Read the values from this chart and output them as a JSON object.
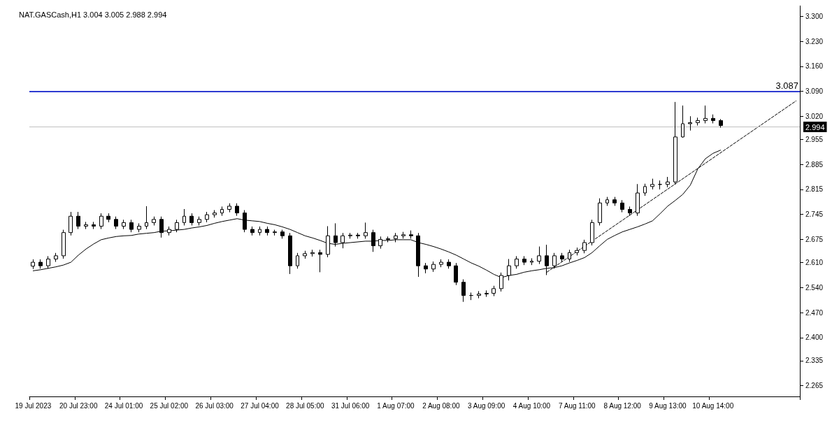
{
  "chart_data": {
    "type": "candlestick",
    "title": "NAT.GASCash,H1 3.004 3.005 2.988 2.994",
    "categories": [
      "19 Jul 2023",
      null,
      null,
      null,
      null,
      null,
      "20 Jul 23:00",
      null,
      null,
      null,
      null,
      null,
      "24 Jul 01:00",
      null,
      null,
      null,
      null,
      null,
      "25 Jul 02:00",
      null,
      null,
      null,
      null,
      null,
      "26 Jul 03:00",
      null,
      null,
      null,
      null,
      null,
      "27 Jul 04:00",
      null,
      null,
      null,
      null,
      null,
      "28 Jul 05:00",
      null,
      null,
      null,
      null,
      null,
      "31 Jul 06:00",
      null,
      null,
      null,
      null,
      null,
      "1 Aug 07:00",
      null,
      null,
      null,
      null,
      null,
      "2 Aug 08:00",
      null,
      null,
      null,
      null,
      null,
      "3 Aug 09:00",
      null,
      null,
      null,
      null,
      null,
      "4 Aug 10:00",
      null,
      null,
      null,
      null,
      null,
      "7 Aug 11:00",
      null,
      null,
      null,
      null,
      null,
      "8 Aug 12:00",
      null,
      null,
      null,
      null,
      null,
      "9 Aug 13:00",
      null,
      null,
      null,
      null,
      null,
      "10 Aug 14:00",
      null,
      null,
      null,
      null,
      null,
      null,
      null,
      null,
      null,
      null,
      null
    ],
    "ohlc": [
      [
        2.6,
        2.619,
        2.592,
        2.611
      ],
      [
        2.611,
        2.619,
        2.593,
        2.601
      ],
      [
        2.601,
        2.628,
        2.593,
        2.62
      ],
      [
        2.62,
        2.637,
        2.612,
        2.629
      ],
      [
        2.629,
        2.702,
        2.621,
        2.694
      ],
      [
        2.694,
        2.752,
        2.686,
        2.74
      ],
      [
        2.74,
        2.752,
        2.704,
        2.712
      ],
      [
        2.712,
        2.724,
        2.704,
        2.716
      ],
      [
        2.716,
        2.724,
        2.704,
        2.712
      ],
      [
        2.712,
        2.748,
        2.704,
        2.74
      ],
      [
        2.74,
        2.748,
        2.723,
        2.731
      ],
      [
        2.731,
        2.739,
        2.704,
        2.712
      ],
      [
        2.712,
        2.73,
        2.704,
        2.722
      ],
      [
        2.722,
        2.73,
        2.695,
        2.703
      ],
      [
        2.703,
        2.72,
        2.695,
        2.712
      ],
      [
        2.712,
        2.768,
        2.704,
        2.722
      ],
      [
        2.722,
        2.739,
        2.714,
        2.731
      ],
      [
        2.731,
        2.739,
        2.68,
        2.694
      ],
      [
        2.694,
        2.711,
        2.686,
        2.703
      ],
      [
        2.703,
        2.73,
        2.695,
        2.722
      ],
      [
        2.722,
        2.76,
        2.714,
        2.74
      ],
      [
        2.74,
        2.748,
        2.714,
        2.722
      ],
      [
        2.722,
        2.739,
        2.714,
        2.731
      ],
      [
        2.731,
        2.752,
        2.723,
        2.744
      ],
      [
        2.744,
        2.757,
        2.736,
        2.749
      ],
      [
        2.749,
        2.767,
        2.741,
        2.759
      ],
      [
        2.759,
        2.776,
        2.751,
        2.768
      ],
      [
        2.768,
        2.776,
        2.741,
        2.749
      ],
      [
        2.749,
        2.757,
        2.695,
        2.703
      ],
      [
        2.703,
        2.711,
        2.686,
        2.694
      ],
      [
        2.694,
        2.711,
        2.686,
        2.703
      ],
      [
        2.703,
        2.711,
        2.686,
        2.694
      ],
      [
        2.694,
        2.702,
        2.686,
        2.696
      ],
      [
        2.696,
        2.702,
        2.677,
        2.685
      ],
      [
        2.685,
        2.693,
        2.578,
        2.601
      ],
      [
        2.601,
        2.637,
        2.593,
        2.629
      ],
      [
        2.629,
        2.643,
        2.621,
        2.635
      ],
      [
        2.635,
        2.646,
        2.627,
        2.638
      ],
      [
        2.638,
        2.646,
        2.583,
        2.633
      ],
      [
        2.633,
        2.712,
        2.625,
        2.685
      ],
      [
        2.685,
        2.72,
        2.655,
        2.666
      ],
      [
        2.666,
        2.693,
        2.65,
        2.685
      ],
      [
        2.685,
        2.693,
        2.677,
        2.687
      ],
      [
        2.687,
        2.693,
        2.677,
        2.685
      ],
      [
        2.685,
        2.722,
        2.677,
        2.694
      ],
      [
        2.694,
        2.702,
        2.64,
        2.657
      ],
      [
        2.657,
        2.683,
        2.649,
        2.675
      ],
      [
        2.675,
        2.683,
        2.667,
        2.677
      ],
      [
        2.677,
        2.693,
        2.667,
        2.685
      ],
      [
        2.685,
        2.696,
        2.677,
        2.688
      ],
      [
        2.688,
        2.7,
        2.677,
        2.685
      ],
      [
        2.685,
        2.693,
        2.57,
        2.601
      ],
      [
        2.601,
        2.609,
        2.58,
        2.592
      ],
      [
        2.592,
        2.613,
        2.584,
        2.605
      ],
      [
        2.605,
        2.619,
        2.597,
        2.611
      ],
      [
        2.611,
        2.619,
        2.593,
        2.601
      ],
      [
        2.601,
        2.609,
        2.547,
        2.555
      ],
      [
        2.555,
        2.563,
        2.5,
        2.518
      ],
      [
        2.518,
        2.526,
        2.505,
        2.518
      ],
      [
        2.518,
        2.53,
        2.51,
        2.522
      ],
      [
        2.522,
        2.532,
        2.514,
        2.524
      ],
      [
        2.524,
        2.545,
        2.516,
        2.537
      ],
      [
        2.537,
        2.582,
        2.529,
        2.574
      ],
      [
        2.574,
        2.62,
        2.56,
        2.601
      ],
      [
        2.601,
        2.628,
        2.593,
        2.62
      ],
      [
        2.62,
        2.628,
        2.603,
        2.611
      ],
      [
        2.611,
        2.622,
        2.603,
        2.614
      ],
      [
        2.614,
        2.655,
        2.606,
        2.629
      ],
      [
        2.629,
        2.66,
        2.575,
        2.601
      ],
      [
        2.601,
        2.637,
        2.593,
        2.629
      ],
      [
        2.629,
        2.637,
        2.612,
        2.62
      ],
      [
        2.62,
        2.646,
        2.612,
        2.638
      ],
      [
        2.638,
        2.652,
        2.63,
        2.644
      ],
      [
        2.644,
        2.674,
        2.636,
        2.666
      ],
      [
        2.666,
        2.73,
        2.658,
        2.722
      ],
      [
        2.722,
        2.79,
        2.714,
        2.777
      ],
      [
        2.777,
        2.794,
        2.769,
        2.786
      ],
      [
        2.786,
        2.794,
        2.769,
        2.777
      ],
      [
        2.777,
        2.785,
        2.751,
        2.759
      ],
      [
        2.759,
        2.767,
        2.741,
        2.749
      ],
      [
        2.749,
        2.83,
        2.741,
        2.805
      ],
      [
        2.805,
        2.831,
        2.797,
        2.823
      ],
      [
        2.823,
        2.845,
        2.815,
        2.829
      ],
      [
        2.829,
        2.84,
        2.815,
        2.829
      ],
      [
        2.829,
        2.85,
        2.821,
        2.836
      ],
      [
        2.836,
        3.06,
        2.828,
        2.962
      ],
      [
        2.962,
        3.05,
        2.96,
        2.999
      ],
      [
        2.999,
        3.02,
        2.98,
        3.002
      ],
      [
        3.002,
        3.016,
        2.994,
        3.008
      ],
      [
        3.008,
        3.05,
        3.0,
        3.014
      ],
      [
        3.014,
        3.025,
        3.0,
        3.008
      ],
      [
        3.008,
        3.012,
        2.988,
        2.994
      ],
      null,
      null,
      null,
      null,
      null,
      null,
      null,
      null,
      null,
      null
    ],
    "color": "#000000",
    "series": [
      {
        "type": "line",
        "color": "#000000",
        "values": [
          2.587,
          2.59,
          2.594,
          2.598,
          2.603,
          2.611,
          2.631,
          2.648,
          2.662,
          2.674,
          2.679,
          2.683,
          2.685,
          2.686,
          2.69,
          2.692,
          2.694,
          2.698,
          2.699,
          2.701,
          2.703,
          2.707,
          2.71,
          2.714,
          2.72,
          2.725,
          2.729,
          2.733,
          2.729,
          2.727,
          2.725,
          2.72,
          2.716,
          2.71,
          2.703,
          2.694,
          2.685,
          2.679,
          2.672,
          2.664,
          2.661,
          2.664,
          2.666,
          2.668,
          2.67,
          2.67,
          2.672,
          2.672,
          2.674,
          2.674,
          2.674,
          2.666,
          2.661,
          2.655,
          2.648,
          2.64,
          2.631,
          2.62,
          2.609,
          2.6,
          2.589,
          2.577,
          2.568,
          2.574,
          2.577,
          2.583,
          2.587,
          2.59,
          2.594,
          2.596,
          2.601,
          2.609,
          2.616,
          2.624,
          2.638,
          2.657,
          2.675,
          2.686,
          2.696,
          2.703,
          2.71,
          2.718,
          2.727,
          2.747,
          2.768,
          2.784,
          2.801,
          2.827,
          2.873,
          2.901,
          2.916,
          2.925,
          null,
          null,
          null,
          null,
          null,
          null,
          null,
          null,
          null,
          null
        ]
      },
      {
        "type": "line",
        "color": "#000000",
        "line_style": "dashed",
        "values": [
          null,
          null,
          null,
          null,
          null,
          null,
          null,
          null,
          null,
          null,
          null,
          null,
          null,
          null,
          null,
          null,
          null,
          null,
          null,
          null,
          null,
          null,
          null,
          null,
          null,
          null,
          null,
          null,
          null,
          null,
          null,
          null,
          null,
          null,
          null,
          null,
          null,
          null,
          null,
          null,
          null,
          null,
          null,
          null,
          null,
          null,
          null,
          null,
          null,
          null,
          null,
          null,
          null,
          null,
          null,
          null,
          null,
          null,
          null,
          null,
          null,
          null,
          null,
          null,
          null,
          null,
          null,
          null,
          2.583,
          null,
          null,
          null,
          null,
          null,
          null,
          null,
          null,
          null,
          null,
          null,
          null,
          null,
          null,
          null,
          null,
          null,
          null,
          null,
          null,
          null,
          null,
          null,
          null,
          null,
          null,
          null,
          null,
          null,
          null,
          null,
          null,
          3.063
        ]
      }
    ],
    "ref_lines": [
      {
        "axis": "y",
        "value": 3.087,
        "label": "3.087",
        "color": "#2e3bd1"
      },
      {
        "axis": "y",
        "value": 2.994,
        "label": "2.994",
        "color": "#c0c0c0"
      }
    ],
    "ylim": [
      2.235,
      3.33
    ],
    "yticks": [
      2.265,
      2.335,
      {
        "value": 2.4,
        "label": "2.400"
      },
      {
        "value": 2.47,
        "label": "2.470"
      },
      {
        "value": 2.54,
        "label": "2.540"
      },
      {
        "value": 2.61,
        "label": "2.610"
      },
      2.675,
      2.745,
      2.815,
      2.885,
      2.955,
      {
        "value": 3.02,
        "label": "3.020"
      },
      {
        "value": 3.09,
        "label": "3.090"
      },
      {
        "value": 3.16,
        "label": "3.160"
      },
      {
        "value": 3.23,
        "label": "3.230"
      },
      {
        "value": 3.3,
        "label": "3.300"
      }
    ],
    "grid": false
  }
}
